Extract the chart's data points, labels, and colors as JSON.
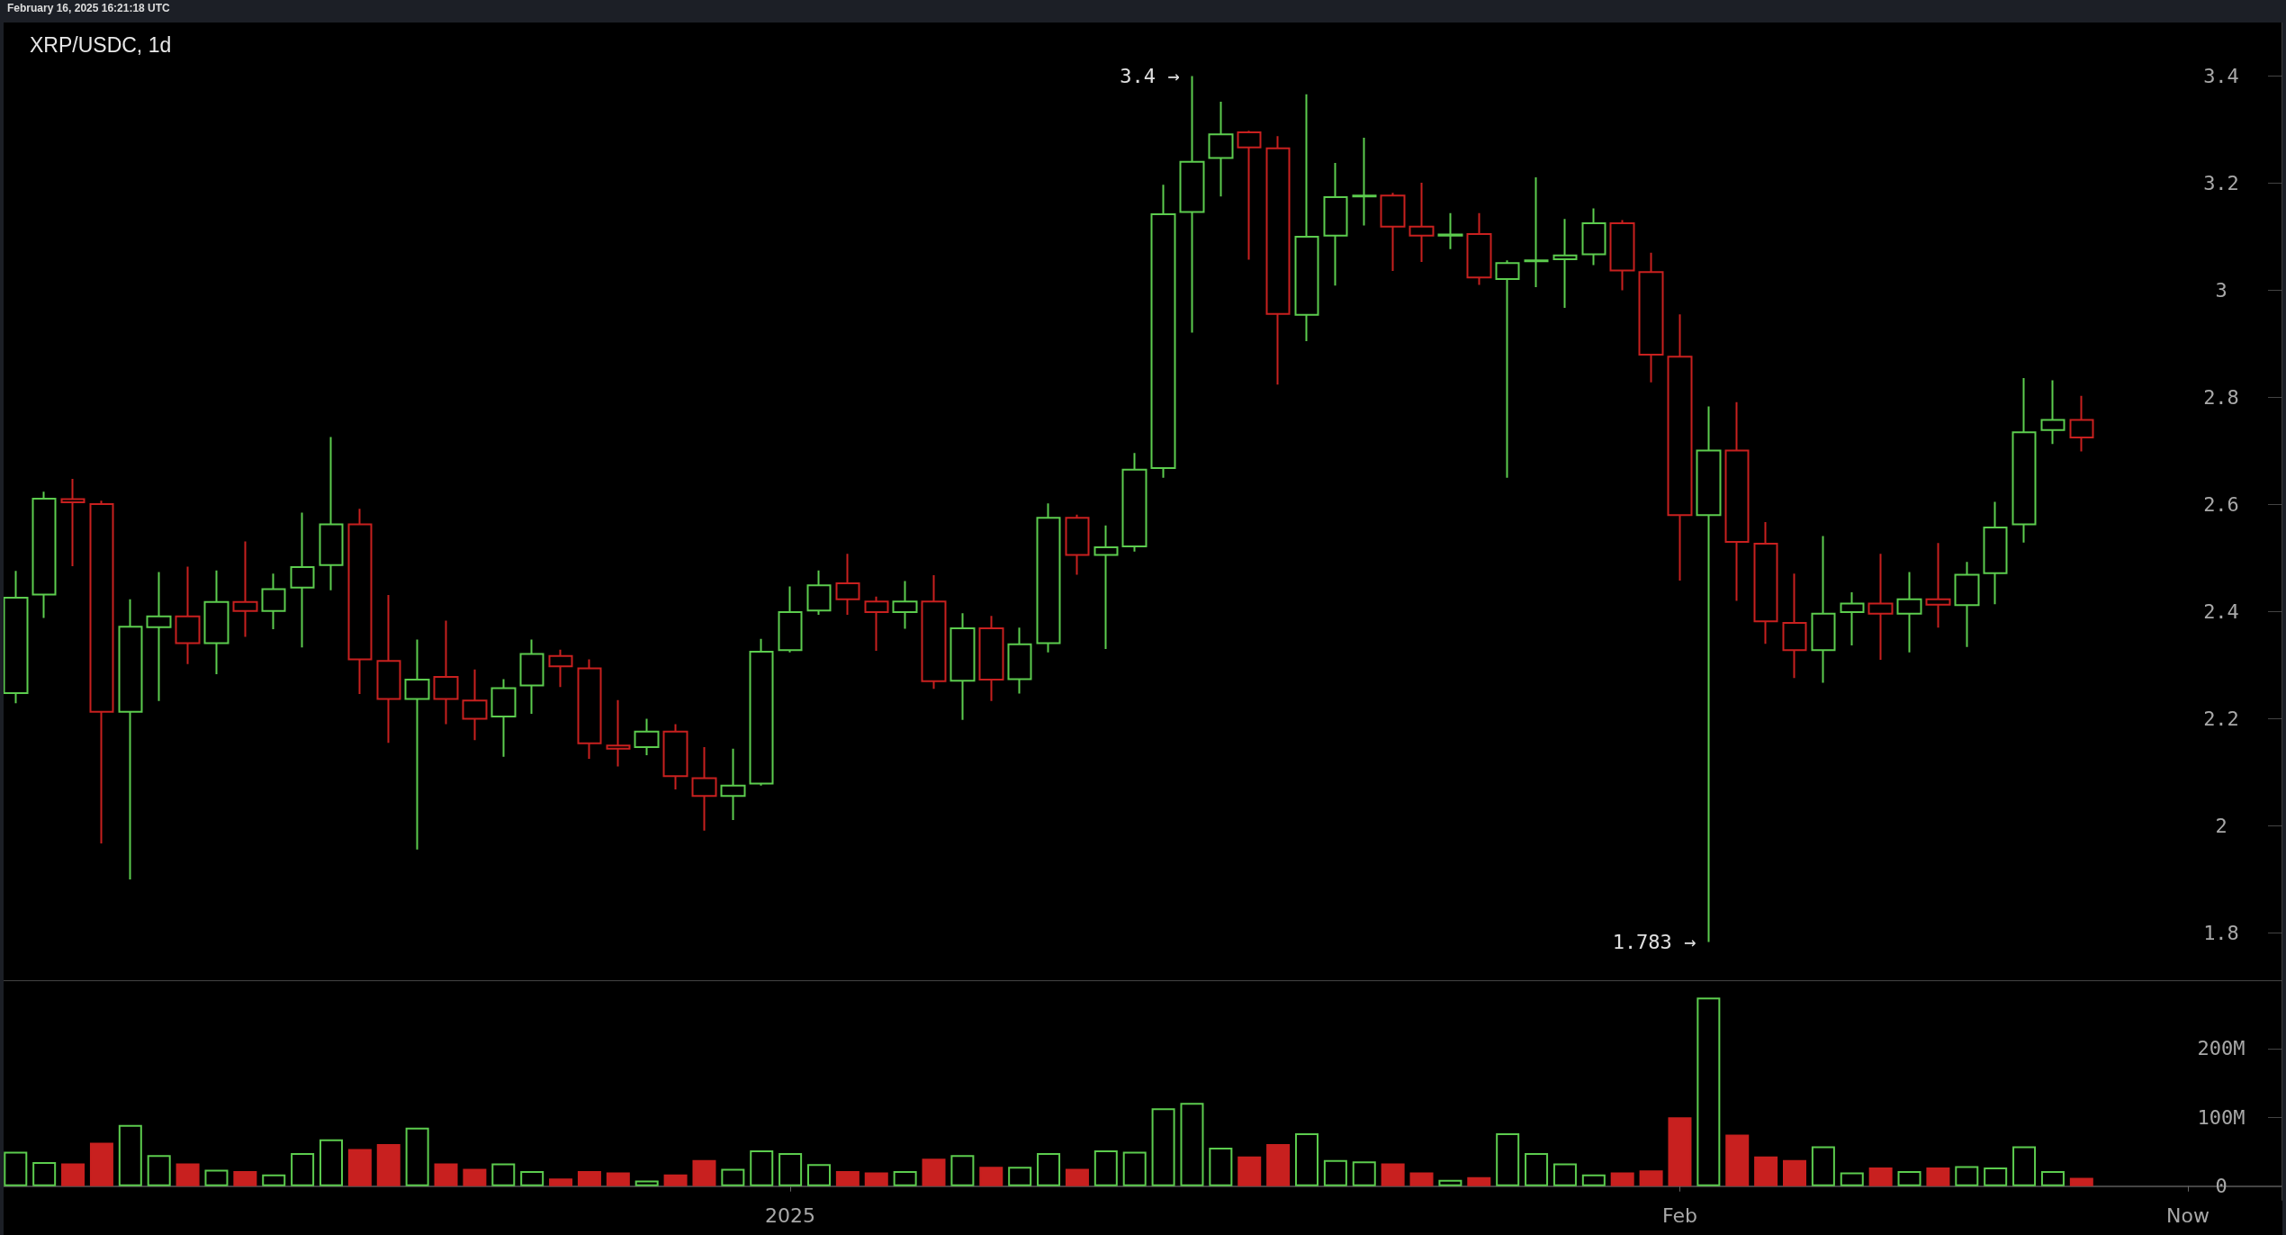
{
  "chart_data": [
    {
      "type": "candlestick",
      "title": "XRP/USDC, 1d",
      "annotations": [
        "February 16, 2025 16:21:18 UTC",
        {
          "text": "3.4 →",
          "x": "2025-01-15",
          "y": 3.4
        },
        {
          "text": "1.783 →",
          "x": "2025-02-02",
          "y": 1.783
        }
      ],
      "x": [
        "2024-12-05",
        "2024-12-06",
        "2024-12-07",
        "2024-12-08",
        "2024-12-09",
        "2024-12-10",
        "2024-12-11",
        "2024-12-12",
        "2024-12-13",
        "2024-12-14",
        "2024-12-15",
        "2024-12-16",
        "2024-12-17",
        "2024-12-18",
        "2024-12-19",
        "2024-12-20",
        "2024-12-21",
        "2024-12-22",
        "2024-12-23",
        "2024-12-24",
        "2024-12-25",
        "2024-12-26",
        "2024-12-27",
        "2024-12-28",
        "2024-12-29",
        "2024-12-30",
        "2024-12-31",
        "2025-01-01",
        "2025-01-02",
        "2025-01-03",
        "2025-01-04",
        "2025-01-05",
        "2025-01-06",
        "2025-01-07",
        "2025-01-08",
        "2025-01-09",
        "2025-01-10",
        "2025-01-11",
        "2025-01-12",
        "2025-01-13",
        "2025-01-14",
        "2025-01-15",
        "2025-01-16",
        "2025-01-17",
        "2025-01-18",
        "2025-01-19",
        "2025-01-20",
        "2025-01-21",
        "2025-01-22",
        "2025-01-23",
        "2025-01-24",
        "2025-01-25",
        "2025-01-26",
        "2025-01-27",
        "2025-01-28",
        "2025-01-29",
        "2025-01-30",
        "2025-01-31",
        "2025-02-01",
        "2025-02-02",
        "2025-02-03",
        "2025-02-04",
        "2025-02-05",
        "2025-02-06",
        "2025-02-07",
        "2025-02-08",
        "2025-02-09",
        "2025-02-10",
        "2025-02-11",
        "2025-02-12",
        "2025-02-13",
        "2025-02-14",
        "2025-02-15"
      ],
      "ohlc": [
        [
          2.248,
          2.476,
          2.229,
          2.426
        ],
        [
          2.432,
          2.624,
          2.388,
          2.611
        ],
        [
          2.61,
          2.648,
          2.485,
          2.604
        ],
        [
          2.601,
          2.607,
          1.967,
          2.213
        ],
        [
          2.213,
          2.423,
          1.9,
          2.372
        ],
        [
          2.371,
          2.474,
          2.233,
          2.391
        ],
        [
          2.391,
          2.484,
          2.302,
          2.341
        ],
        [
          2.341,
          2.477,
          2.283,
          2.418
        ],
        [
          2.418,
          2.531,
          2.353,
          2.401
        ],
        [
          2.401,
          2.471,
          2.367,
          2.442
        ],
        [
          2.445,
          2.585,
          2.333,
          2.483
        ],
        [
          2.487,
          2.726,
          2.44,
          2.563
        ],
        [
          2.563,
          2.592,
          2.246,
          2.311
        ],
        [
          2.308,
          2.431,
          2.155,
          2.237
        ],
        [
          2.237,
          2.348,
          1.956,
          2.273
        ],
        [
          2.278,
          2.383,
          2.19,
          2.237
        ],
        [
          2.234,
          2.292,
          2.16,
          2.2
        ],
        [
          2.204,
          2.274,
          2.129,
          2.257
        ],
        [
          2.262,
          2.348,
          2.209,
          2.321
        ],
        [
          2.317,
          2.329,
          2.259,
          2.298
        ],
        [
          2.294,
          2.311,
          2.125,
          2.154
        ],
        [
          2.15,
          2.235,
          2.111,
          2.144
        ],
        [
          2.147,
          2.2,
          2.132,
          2.176
        ],
        [
          2.176,
          2.19,
          2.068,
          2.093
        ],
        [
          2.089,
          2.147,
          1.991,
          2.056
        ],
        [
          2.056,
          2.144,
          2.011,
          2.075
        ],
        [
          2.079,
          2.349,
          2.075,
          2.325
        ],
        [
          2.328,
          2.447,
          2.324,
          2.399
        ],
        [
          2.402,
          2.477,
          2.394,
          2.449
        ],
        [
          2.453,
          2.508,
          2.394,
          2.423
        ],
        [
          2.419,
          2.428,
          2.327,
          2.399
        ],
        [
          2.399,
          2.457,
          2.368,
          2.419
        ],
        [
          2.419,
          2.468,
          2.256,
          2.27
        ],
        [
          2.271,
          2.397,
          2.198,
          2.369
        ],
        [
          2.369,
          2.392,
          2.233,
          2.273
        ],
        [
          2.274,
          2.37,
          2.247,
          2.339
        ],
        [
          2.341,
          2.602,
          2.324,
          2.575
        ],
        [
          2.575,
          2.581,
          2.469,
          2.506
        ],
        [
          2.506,
          2.561,
          2.33,
          2.52
        ],
        [
          2.522,
          2.696,
          2.512,
          2.665
        ],
        [
          2.668,
          3.197,
          2.65,
          3.142
        ],
        [
          3.146,
          3.4,
          2.921,
          3.24
        ],
        [
          3.247,
          3.352,
          3.175,
          3.291
        ],
        [
          3.295,
          3.298,
          3.057,
          3.267
        ],
        [
          3.265,
          3.288,
          2.824,
          2.956
        ],
        [
          2.954,
          3.366,
          2.905,
          3.1
        ],
        [
          3.102,
          3.238,
          3.009,
          3.174
        ],
        [
          3.175,
          3.285,
          3.121,
          3.177
        ],
        [
          3.177,
          3.182,
          3.036,
          3.119
        ],
        [
          3.119,
          3.201,
          3.053,
          3.102
        ],
        [
          3.102,
          3.144,
          3.077,
          3.104
        ],
        [
          3.105,
          3.144,
          3.01,
          3.024
        ],
        [
          3.021,
          3.056,
          2.65,
          3.051
        ],
        [
          3.054,
          3.211,
          3.006,
          3.056
        ],
        [
          3.058,
          3.133,
          2.967,
          3.065
        ],
        [
          3.067,
          3.153,
          3.047,
          3.125
        ],
        [
          3.125,
          3.131,
          3.0,
          3.037
        ],
        [
          3.034,
          3.07,
          2.828,
          2.88
        ],
        [
          2.876,
          2.955,
          2.458,
          2.58
        ],
        [
          2.58,
          2.783,
          1.783,
          2.701
        ],
        [
          2.701,
          2.791,
          2.42,
          2.53
        ],
        [
          2.527,
          2.567,
          2.34,
          2.382
        ],
        [
          2.379,
          2.471,
          2.276,
          2.328
        ],
        [
          2.328,
          2.541,
          2.267,
          2.396
        ],
        [
          2.399,
          2.436,
          2.337,
          2.415
        ],
        [
          2.415,
          2.508,
          2.31,
          2.396
        ],
        [
          2.396,
          2.474,
          2.324,
          2.423
        ],
        [
          2.423,
          2.528,
          2.37,
          2.413
        ],
        [
          2.412,
          2.493,
          2.334,
          2.469
        ],
        [
          2.472,
          2.605,
          2.414,
          2.557
        ],
        [
          2.563,
          2.836,
          2.529,
          2.735
        ],
        [
          2.739,
          2.832,
          2.713,
          2.758
        ],
        [
          2.758,
          2.803,
          2.699,
          2.725
        ]
      ],
      "colors": [
        "#5ccc4e",
        "#5ccc4e",
        "#c8201f",
        "#c8201f",
        "#5ccc4e",
        "#5ccc4e",
        "#c8201f",
        "#5ccc4e",
        "#c8201f",
        "#5ccc4e",
        "#5ccc4e",
        "#5ccc4e",
        "#c8201f",
        "#c8201f",
        "#5ccc4e",
        "#c8201f",
        "#c8201f",
        "#5ccc4e",
        "#5ccc4e",
        "#c8201f",
        "#c8201f",
        "#c8201f",
        "#5ccc4e",
        "#c8201f",
        "#c8201f",
        "#5ccc4e",
        "#5ccc4e",
        "#5ccc4e",
        "#5ccc4e",
        "#c8201f",
        "#c8201f",
        "#5ccc4e",
        "#c8201f",
        "#5ccc4e",
        "#c8201f",
        "#5ccc4e",
        "#5ccc4e",
        "#c8201f",
        "#5ccc4e",
        "#5ccc4e",
        "#5ccc4e",
        "#5ccc4e",
        "#5ccc4e",
        "#c8201f",
        "#c8201f",
        "#5ccc4e",
        "#5ccc4e",
        "#5ccc4e",
        "#c8201f",
        "#c8201f",
        "#5ccc4e",
        "#c8201f",
        "#5ccc4e",
        "#5ccc4e",
        "#5ccc4e",
        "#5ccc4e",
        "#c8201f",
        "#c8201f",
        "#c8201f",
        "#5ccc4e",
        "#c8201f",
        "#c8201f",
        "#c8201f",
        "#5ccc4e",
        "#5ccc4e",
        "#c8201f",
        "#5ccc4e",
        "#c8201f",
        "#5ccc4e",
        "#5ccc4e",
        "#5ccc4e",
        "#5ccc4e",
        "#c8201f"
      ],
      "xlim": [
        "2024-12-04T14:00",
        "2025-02-22T00:00"
      ],
      "ylim": [
        1.71,
        3.5
      ],
      "yticks": [
        1.8,
        2.0,
        2.2,
        2.4,
        2.6,
        2.8,
        3.0,
        3.2,
        3.4
      ],
      "grid": false,
      "tick_labels": "y"
    },
    {
      "type": "bar",
      "x": [
        "2024-12-05",
        "2024-12-06",
        "2024-12-07",
        "2024-12-08",
        "2024-12-09",
        "2024-12-10",
        "2024-12-11",
        "2024-12-12",
        "2024-12-13",
        "2024-12-14",
        "2024-12-15",
        "2024-12-16",
        "2024-12-17",
        "2024-12-18",
        "2024-12-19",
        "2024-12-20",
        "2024-12-21",
        "2024-12-22",
        "2024-12-23",
        "2024-12-24",
        "2024-12-25",
        "2024-12-26",
        "2024-12-27",
        "2024-12-28",
        "2024-12-29",
        "2024-12-30",
        "2024-12-31",
        "2025-01-01",
        "2025-01-02",
        "2025-01-03",
        "2025-01-04",
        "2025-01-05",
        "2025-01-06",
        "2025-01-07",
        "2025-01-08",
        "2025-01-09",
        "2025-01-10",
        "2025-01-11",
        "2025-01-12",
        "2025-01-13",
        "2025-01-14",
        "2025-01-15",
        "2025-01-16",
        "2025-01-17",
        "2025-01-18",
        "2025-01-19",
        "2025-01-20",
        "2025-01-21",
        "2025-01-22",
        "2025-01-23",
        "2025-01-24",
        "2025-01-25",
        "2025-01-26",
        "2025-01-27",
        "2025-01-28",
        "2025-01-29",
        "2025-01-30",
        "2025-01-31",
        "2025-02-01",
        "2025-02-02",
        "2025-02-03",
        "2025-02-04",
        "2025-02-05",
        "2025-02-06",
        "2025-02-07",
        "2025-02-08",
        "2025-02-09",
        "2025-02-10",
        "2025-02-11",
        "2025-02-12",
        "2025-02-13",
        "2025-02-14",
        "2025-02-15"
      ],
      "values": [
        50,
        35,
        33,
        63,
        89,
        45,
        33,
        24,
        22,
        17,
        48,
        68,
        54,
        61,
        85,
        33,
        25,
        33,
        22,
        11,
        22,
        20,
        8,
        17,
        38,
        25,
        52,
        48,
        32,
        22,
        20,
        22,
        40,
        45,
        28,
        28,
        48,
        25,
        52,
        50,
        113,
        121,
        56,
        43,
        61,
        77,
        38,
        36,
        33,
        20,
        9,
        13,
        77,
        48,
        33,
        17,
        20,
        23,
        100,
        274,
        75,
        43,
        38,
        58,
        20,
        27,
        22,
        27,
        29,
        27,
        58,
        22,
        12
      ],
      "colors": [
        "#5ccc4e",
        "#5ccc4e",
        "#c8201f",
        "#c8201f",
        "#5ccc4e",
        "#5ccc4e",
        "#c8201f",
        "#5ccc4e",
        "#c8201f",
        "#5ccc4e",
        "#5ccc4e",
        "#5ccc4e",
        "#c8201f",
        "#c8201f",
        "#5ccc4e",
        "#c8201f",
        "#c8201f",
        "#5ccc4e",
        "#5ccc4e",
        "#c8201f",
        "#c8201f",
        "#c8201f",
        "#5ccc4e",
        "#c8201f",
        "#c8201f",
        "#5ccc4e",
        "#5ccc4e",
        "#5ccc4e",
        "#5ccc4e",
        "#c8201f",
        "#c8201f",
        "#5ccc4e",
        "#c8201f",
        "#5ccc4e",
        "#c8201f",
        "#5ccc4e",
        "#5ccc4e",
        "#c8201f",
        "#5ccc4e",
        "#5ccc4e",
        "#5ccc4e",
        "#5ccc4e",
        "#5ccc4e",
        "#c8201f",
        "#c8201f",
        "#5ccc4e",
        "#5ccc4e",
        "#5ccc4e",
        "#c8201f",
        "#c8201f",
        "#5ccc4e",
        "#c8201f",
        "#5ccc4e",
        "#5ccc4e",
        "#5ccc4e",
        "#5ccc4e",
        "#c8201f",
        "#c8201f",
        "#c8201f",
        "#5ccc4e",
        "#c8201f",
        "#c8201f",
        "#c8201f",
        "#5ccc4e",
        "#5ccc4e",
        "#c8201f",
        "#5ccc4e",
        "#c8201f",
        "#5ccc4e",
        "#5ccc4e",
        "#5ccc4e",
        "#5ccc4e",
        "#c8201f"
      ],
      "xlim": [
        "2024-12-04T14:00",
        "2025-02-22T00:00"
      ],
      "xticks": [
        {
          "value": "2025-01-01",
          "label": "2025"
        },
        {
          "value": "2025-02-01",
          "label": "Feb"
        },
        {
          "value": "2025-02-18T17:00",
          "label": "Now"
        }
      ],
      "ylim": [
        -20,
        298
      ],
      "yticks": [
        0,
        {
          "value": 100,
          "label": "100M"
        },
        {
          "value": 200,
          "label": "200M"
        }
      ],
      "grid": false
    }
  ]
}
